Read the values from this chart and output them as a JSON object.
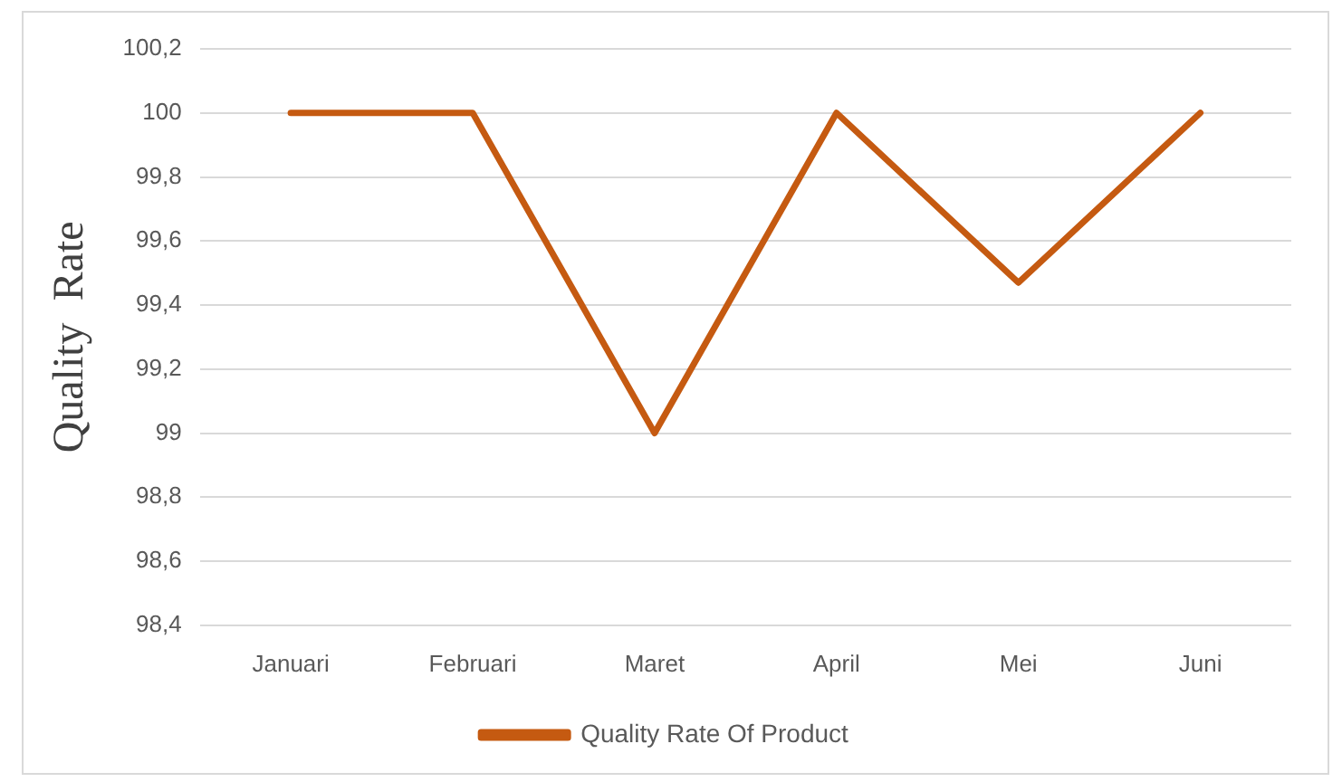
{
  "chart_data": {
    "type": "line",
    "ylabel": "Quality  Rate",
    "categories": [
      "Januari",
      "Februari",
      "Maret",
      "April",
      "Mei",
      "Juni"
    ],
    "series": [
      {
        "name": "Quality Rate Of Product",
        "color": "#c55a11",
        "values": [
          100,
          100,
          99,
          100,
          99.47,
          100
        ]
      }
    ],
    "ylim": [
      98.4,
      100.2
    ],
    "yticks": [
      {
        "value": 98.4,
        "label": "98,4"
      },
      {
        "value": 98.6,
        "label": "98,6"
      },
      {
        "value": 98.8,
        "label": "98,8"
      },
      {
        "value": 99,
        "label": "99"
      },
      {
        "value": 99.2,
        "label": "99,2"
      },
      {
        "value": 99.4,
        "label": "99,4"
      },
      {
        "value": 99.6,
        "label": "99,6"
      },
      {
        "value": 99.8,
        "label": "99,8"
      },
      {
        "value": 100,
        "label": "100"
      },
      {
        "value": 100.2,
        "label": "100,2"
      }
    ],
    "grid": "y",
    "legend": "bottom",
    "marker": "none",
    "line_style": "solid"
  }
}
